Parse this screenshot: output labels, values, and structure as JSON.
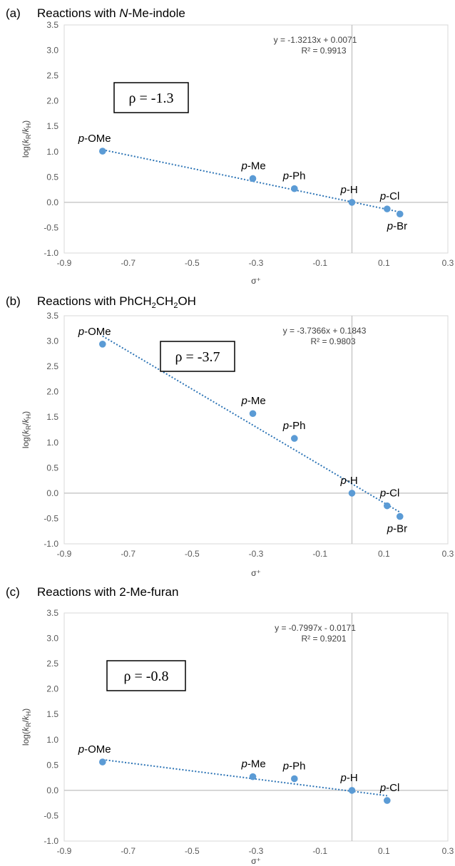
{
  "chart_data": [
    {
      "type": "scatter",
      "panel_letter": "(a)",
      "title": "Reactions with N-Me-indole",
      "title_parts": [
        "Reactions with ",
        "N",
        "-Me-indole"
      ],
      "xlabel": "σ⁺",
      "ylabel": "log(kR/kH)",
      "xlim": [
        -0.9,
        0.3
      ],
      "ylim": [
        -1.0,
        3.5
      ],
      "xticks": [
        "-0.9",
        "-0.7",
        "-0.5",
        "-0.3",
        "-0.1",
        "0.1",
        "0.3"
      ],
      "yticks": [
        "-1.0",
        "-0.5",
        "0.0",
        "0.5",
        "1.0",
        "1.5",
        "2.0",
        "2.5",
        "3.0",
        "3.5"
      ],
      "points": [
        {
          "label": "OMe",
          "x": -0.78,
          "y": 1.01
        },
        {
          "label": "Me",
          "x": -0.31,
          "y": 0.47
        },
        {
          "label": "Ph",
          "x": -0.18,
          "y": 0.27
        },
        {
          "label": "H",
          "x": 0.0,
          "y": 0.0
        },
        {
          "label": "Cl",
          "x": 0.11,
          "y": -0.13
        },
        {
          "label": "Br",
          "x": 0.15,
          "y": -0.23
        }
      ],
      "trendline": {
        "slope": -1.3213,
        "intercept": 0.0071,
        "equation": "y = -1.3213x + 0.0071",
        "r2": "R² = 0.9913"
      },
      "rho": "ρ = -1.3",
      "marker_color": "#5b9bd5",
      "trend_color": "#2e75b6"
    },
    {
      "type": "scatter",
      "panel_letter": "(b)",
      "title": "Reactions with PhCH2CH2OH",
      "title_parts": [
        "Reactions with PhCH",
        "2",
        "CH",
        "2",
        "OH"
      ],
      "xlabel": "σ⁺",
      "ylabel": "log(kR/kH)",
      "xlim": [
        -0.9,
        0.3
      ],
      "ylim": [
        -1.0,
        3.5
      ],
      "xticks": [
        "-0.9",
        "-0.7",
        "-0.5",
        "-0.3",
        "-0.1",
        "0.1",
        "0.3"
      ],
      "yticks": [
        "-1.0",
        "-0.5",
        "0.0",
        "0.5",
        "1.0",
        "1.5",
        "2.0",
        "2.5",
        "3.0",
        "3.5"
      ],
      "points": [
        {
          "label": "OMe",
          "x": -0.78,
          "y": 2.94
        },
        {
          "label": "Me",
          "x": -0.31,
          "y": 1.57
        },
        {
          "label": "Ph",
          "x": -0.18,
          "y": 1.08
        },
        {
          "label": "H",
          "x": 0.0,
          "y": 0.0
        },
        {
          "label": "Cl",
          "x": 0.11,
          "y": -0.25
        },
        {
          "label": "Br",
          "x": 0.15,
          "y": -0.46
        }
      ],
      "trendline": {
        "slope": -3.7366,
        "intercept": 0.1843,
        "equation": "y = -3.7366x + 0.1843",
        "r2": "R² = 0.9803"
      },
      "rho": "ρ = -3.7",
      "marker_color": "#5b9bd5",
      "trend_color": "#2e75b6"
    },
    {
      "type": "scatter",
      "panel_letter": "(c)",
      "title": "Reactions with 2-Me-furan",
      "title_parts": [
        "Reactions with 2-Me-furan"
      ],
      "xlabel": "σ⁺",
      "ylabel": "log(kR/kH)",
      "xlim": [
        -0.9,
        0.3
      ],
      "ylim": [
        -1.0,
        3.5
      ],
      "xticks": [
        "-0.9",
        "-0.7",
        "-0.5",
        "-0.3",
        "-0.1",
        "0.1",
        "0.3"
      ],
      "yticks": [
        "-1.0",
        "-0.5",
        "0.0",
        "0.5",
        "1.0",
        "1.5",
        "2.0",
        "2.5",
        "3.0",
        "3.5"
      ],
      "points": [
        {
          "label": "OMe",
          "x": -0.78,
          "y": 0.56
        },
        {
          "label": "Me",
          "x": -0.31,
          "y": 0.27
        },
        {
          "label": "Ph",
          "x": -0.18,
          "y": 0.23
        },
        {
          "label": "H",
          "x": 0.0,
          "y": 0.0
        },
        {
          "label": "Cl",
          "x": 0.11,
          "y": -0.2
        }
      ],
      "trendline": {
        "slope": -0.7997,
        "intercept": -0.0171,
        "equation": "y = -0.7997x - 0.0171",
        "r2": "R² = 0.9201"
      },
      "rho": "ρ = -0.8",
      "marker_color": "#5b9bd5",
      "trend_color": "#2e75b6"
    }
  ]
}
